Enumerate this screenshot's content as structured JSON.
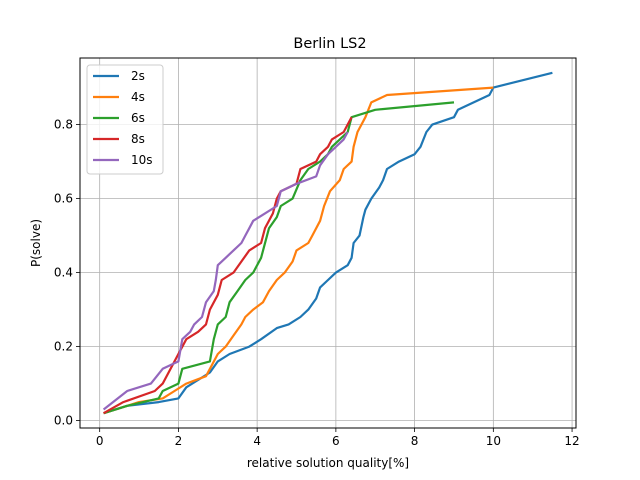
{
  "chart_data": {
    "type": "line",
    "title": "Berlin LS2",
    "xlabel": "relative solution quality[%]",
    "ylabel": "P(solve)",
    "xlim": [
      -0.5,
      12.1
    ],
    "ylim": [
      -0.02,
      0.98
    ],
    "xticks": [
      0,
      2,
      4,
      6,
      8,
      10,
      12
    ],
    "xtick_labels": [
      "0",
      "2",
      "4",
      "6",
      "8",
      "10",
      "12"
    ],
    "yticks": [
      0.0,
      0.2,
      0.4,
      0.6,
      0.8
    ],
    "ytick_labels": [
      "0.0",
      "0.2",
      "0.4",
      "0.6",
      "0.8"
    ],
    "grid": true,
    "legend_position": "top-left",
    "series": [
      {
        "name": "2s",
        "color": "#1f77b4",
        "points": [
          [
            0.1,
            0.02
          ],
          [
            0.7,
            0.04
          ],
          [
            1.5,
            0.05
          ],
          [
            2.0,
            0.06
          ],
          [
            2.2,
            0.09
          ],
          [
            2.5,
            0.11
          ],
          [
            2.8,
            0.13
          ],
          [
            3.0,
            0.16
          ],
          [
            3.3,
            0.18
          ],
          [
            3.8,
            0.2
          ],
          [
            4.1,
            0.22
          ],
          [
            4.5,
            0.25
          ],
          [
            4.8,
            0.26
          ],
          [
            5.1,
            0.28
          ],
          [
            5.3,
            0.3
          ],
          [
            5.5,
            0.33
          ],
          [
            5.6,
            0.36
          ],
          [
            5.8,
            0.38
          ],
          [
            6.0,
            0.4
          ],
          [
            6.3,
            0.42
          ],
          [
            6.4,
            0.44
          ],
          [
            6.45,
            0.48
          ],
          [
            6.6,
            0.5
          ],
          [
            6.7,
            0.55
          ],
          [
            6.75,
            0.57
          ],
          [
            6.9,
            0.6
          ],
          [
            7.1,
            0.63
          ],
          [
            7.2,
            0.65
          ],
          [
            7.3,
            0.68
          ],
          [
            7.6,
            0.7
          ],
          [
            8.0,
            0.72
          ],
          [
            8.15,
            0.74
          ],
          [
            8.3,
            0.78
          ],
          [
            8.45,
            0.8
          ],
          [
            9.0,
            0.82
          ],
          [
            9.1,
            0.84
          ],
          [
            9.9,
            0.88
          ],
          [
            10.0,
            0.9
          ],
          [
            11.5,
            0.94
          ]
        ]
      },
      {
        "name": "4s",
        "color": "#ff7f0e",
        "points": [
          [
            0.1,
            0.02
          ],
          [
            1.0,
            0.05
          ],
          [
            1.6,
            0.06
          ],
          [
            1.9,
            0.08
          ],
          [
            2.2,
            0.1
          ],
          [
            2.7,
            0.12
          ],
          [
            3.0,
            0.18
          ],
          [
            3.2,
            0.2
          ],
          [
            3.4,
            0.23
          ],
          [
            3.6,
            0.26
          ],
          [
            3.7,
            0.28
          ],
          [
            3.9,
            0.3
          ],
          [
            4.15,
            0.32
          ],
          [
            4.3,
            0.35
          ],
          [
            4.5,
            0.38
          ],
          [
            4.7,
            0.4
          ],
          [
            4.9,
            0.43
          ],
          [
            5.0,
            0.46
          ],
          [
            5.3,
            0.48
          ],
          [
            5.4,
            0.5
          ],
          [
            5.6,
            0.54
          ],
          [
            5.7,
            0.58
          ],
          [
            5.85,
            0.62
          ],
          [
            6.1,
            0.65
          ],
          [
            6.2,
            0.68
          ],
          [
            6.4,
            0.7
          ],
          [
            6.45,
            0.74
          ],
          [
            6.55,
            0.78
          ],
          [
            6.75,
            0.82
          ],
          [
            6.9,
            0.86
          ],
          [
            7.3,
            0.88
          ],
          [
            10.0,
            0.9
          ]
        ]
      },
      {
        "name": "6s",
        "color": "#2ca02c",
        "points": [
          [
            0.1,
            0.02
          ],
          [
            0.7,
            0.04
          ],
          [
            1.5,
            0.06
          ],
          [
            1.6,
            0.08
          ],
          [
            2.0,
            0.1
          ],
          [
            2.1,
            0.14
          ],
          [
            2.8,
            0.16
          ],
          [
            2.9,
            0.22
          ],
          [
            3.0,
            0.26
          ],
          [
            3.2,
            0.28
          ],
          [
            3.3,
            0.32
          ],
          [
            3.5,
            0.35
          ],
          [
            3.7,
            0.38
          ],
          [
            3.9,
            0.4
          ],
          [
            4.1,
            0.44
          ],
          [
            4.3,
            0.52
          ],
          [
            4.5,
            0.55
          ],
          [
            4.6,
            0.58
          ],
          [
            4.9,
            0.6
          ],
          [
            5.1,
            0.65
          ],
          [
            5.3,
            0.68
          ],
          [
            5.6,
            0.7
          ],
          [
            5.8,
            0.72
          ],
          [
            5.9,
            0.74
          ],
          [
            6.3,
            0.78
          ],
          [
            6.4,
            0.82
          ],
          [
            7.0,
            0.84
          ],
          [
            9.0,
            0.86
          ]
        ]
      },
      {
        "name": "8s",
        "color": "#d62728",
        "points": [
          [
            0.1,
            0.02
          ],
          [
            0.6,
            0.05
          ],
          [
            1.4,
            0.08
          ],
          [
            1.6,
            0.1
          ],
          [
            1.9,
            0.16
          ],
          [
            2.0,
            0.18
          ],
          [
            2.2,
            0.22
          ],
          [
            2.5,
            0.24
          ],
          [
            2.7,
            0.26
          ],
          [
            2.8,
            0.3
          ],
          [
            3.0,
            0.34
          ],
          [
            3.1,
            0.38
          ],
          [
            3.4,
            0.4
          ],
          [
            3.6,
            0.43
          ],
          [
            3.8,
            0.46
          ],
          [
            4.1,
            0.48
          ],
          [
            4.2,
            0.52
          ],
          [
            4.4,
            0.56
          ],
          [
            4.5,
            0.6
          ],
          [
            4.6,
            0.62
          ],
          [
            5.0,
            0.64
          ],
          [
            5.1,
            0.68
          ],
          [
            5.5,
            0.7
          ],
          [
            5.6,
            0.72
          ],
          [
            5.8,
            0.74
          ],
          [
            5.9,
            0.76
          ],
          [
            6.2,
            0.78
          ],
          [
            6.4,
            0.82
          ]
        ]
      },
      {
        "name": "10s",
        "color": "#9467bd",
        "points": [
          [
            0.1,
            0.03
          ],
          [
            0.7,
            0.08
          ],
          [
            1.3,
            0.1
          ],
          [
            1.6,
            0.14
          ],
          [
            2.0,
            0.16
          ],
          [
            2.1,
            0.22
          ],
          [
            2.3,
            0.24
          ],
          [
            2.4,
            0.26
          ],
          [
            2.6,
            0.28
          ],
          [
            2.7,
            0.32
          ],
          [
            2.9,
            0.35
          ],
          [
            2.95,
            0.38
          ],
          [
            3.0,
            0.42
          ],
          [
            3.2,
            0.44
          ],
          [
            3.4,
            0.46
          ],
          [
            3.6,
            0.48
          ],
          [
            3.7,
            0.5
          ],
          [
            3.8,
            0.52
          ],
          [
            3.9,
            0.54
          ],
          [
            4.2,
            0.56
          ],
          [
            4.5,
            0.58
          ],
          [
            4.6,
            0.62
          ],
          [
            5.0,
            0.64
          ],
          [
            5.5,
            0.66
          ],
          [
            5.6,
            0.69
          ],
          [
            5.8,
            0.72
          ],
          [
            6.0,
            0.74
          ],
          [
            6.2,
            0.76
          ],
          [
            6.3,
            0.78
          ]
        ]
      }
    ]
  }
}
